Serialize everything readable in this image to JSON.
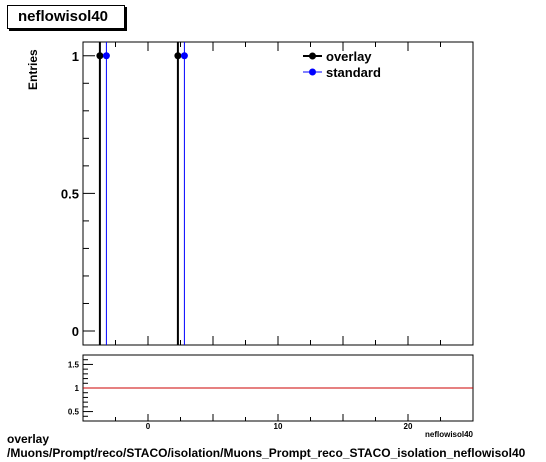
{
  "title": "neflowisol40",
  "chart_data": [
    {
      "type": "line",
      "ylabel": "Entries",
      "ylim": [
        0,
        1.05
      ],
      "xlim": [
        -5,
        25
      ],
      "y_ticks": [
        "0",
        "0.5",
        "1"
      ],
      "legend": {
        "placement": "top-right",
        "entries": [
          {
            "name": "overlay",
            "color": "#000000"
          },
          {
            "name": "standard",
            "color": "#0000ff"
          }
        ]
      },
      "series": [
        {
          "name": "overlay",
          "color": "#000000",
          "x": [
            -3.7,
            2.3
          ],
          "y": [
            1,
            1
          ]
        },
        {
          "name": "standard",
          "color": "#0000ff",
          "x": [
            -3.2,
            2.8
          ],
          "y": [
            1,
            1
          ]
        }
      ]
    },
    {
      "type": "line",
      "xlabel": "neflowisol40",
      "xlim": [
        -5,
        25
      ],
      "ylim": [
        0.3,
        1.7
      ],
      "x_ticks": [
        "0",
        "10",
        "20"
      ],
      "y_ticks": [
        "0.5",
        "1",
        "1.5"
      ],
      "reference_line": {
        "y": 1,
        "color": "#cc0000"
      }
    }
  ],
  "footer": {
    "line1": "overlay",
    "line2": "/Muons/Prompt/reco/STACO/isolation/Muons_Prompt_reco_STACO_isolation_neflowisol40"
  }
}
